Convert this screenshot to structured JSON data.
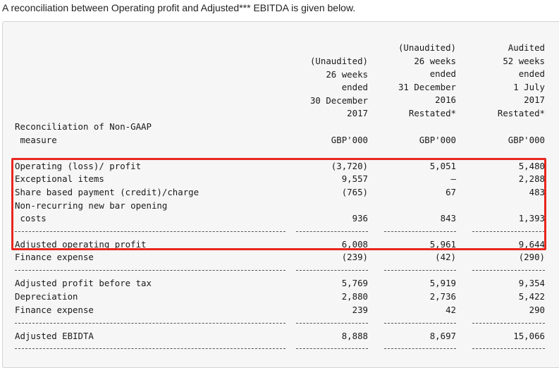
{
  "intro": "A reconciliation between Operating profit and Adjusted*** EBITDA is given below.",
  "columns": [
    {
      "lines": [
        "(Unaudited)",
        "26 weeks",
        "ended",
        "30 December",
        "2017"
      ],
      "unit": "GBP'000"
    },
    {
      "lines": [
        "(Unaudited)",
        "26 weeks",
        "ended",
        "31 December",
        "2016",
        "Restated*"
      ],
      "unit": "GBP'000"
    },
    {
      "lines": [
        "Audited",
        "52 weeks",
        "ended",
        "1 July",
        "2017",
        "Restated*"
      ],
      "unit": "GBP'000"
    }
  ],
  "table_label": [
    "Reconciliation of Non-GAAP",
    " measure"
  ],
  "rows": {
    "operating": {
      "label": "Operating (loss)/ profit",
      "values": [
        "(3,720)",
        "5,051",
        "5,480"
      ]
    },
    "exceptional": {
      "label": "Exceptional items",
      "values": [
        "9,557",
        "–",
        "2,288"
      ]
    },
    "share_based": {
      "label": "Share based payment (credit)/charge",
      "values": [
        "(765)",
        "67",
        "483"
      ]
    },
    "non_recurring": {
      "label": [
        "Non-recurring new bar opening",
        " costs"
      ],
      "values": [
        "936",
        "843",
        "1,393"
      ]
    },
    "adjusted_operating": {
      "label": "Adjusted operating profit",
      "values": [
        "6,008",
        "5,961",
        "9,644"
      ]
    },
    "finance_expense_1": {
      "label": "Finance expense",
      "values": [
        "(239)",
        "(42)",
        "(290)"
      ]
    },
    "adjusted_pbt": {
      "label": "Adjusted profit before tax",
      "values": [
        "5,769",
        "5,919",
        "9,354"
      ]
    },
    "depreciation": {
      "label": "Depreciation",
      "values": [
        "2,880",
        "2,736",
        "5,422"
      ]
    },
    "finance_expense_2": {
      "label": "Finance expense",
      "values": [
        "239",
        "42",
        "290"
      ]
    },
    "adjusted_ebitda": {
      "label": "Adjusted EBIDTA",
      "values": [
        "8,888",
        "8,697",
        "15,066"
      ]
    }
  },
  "highlight_color": "#e8261f"
}
